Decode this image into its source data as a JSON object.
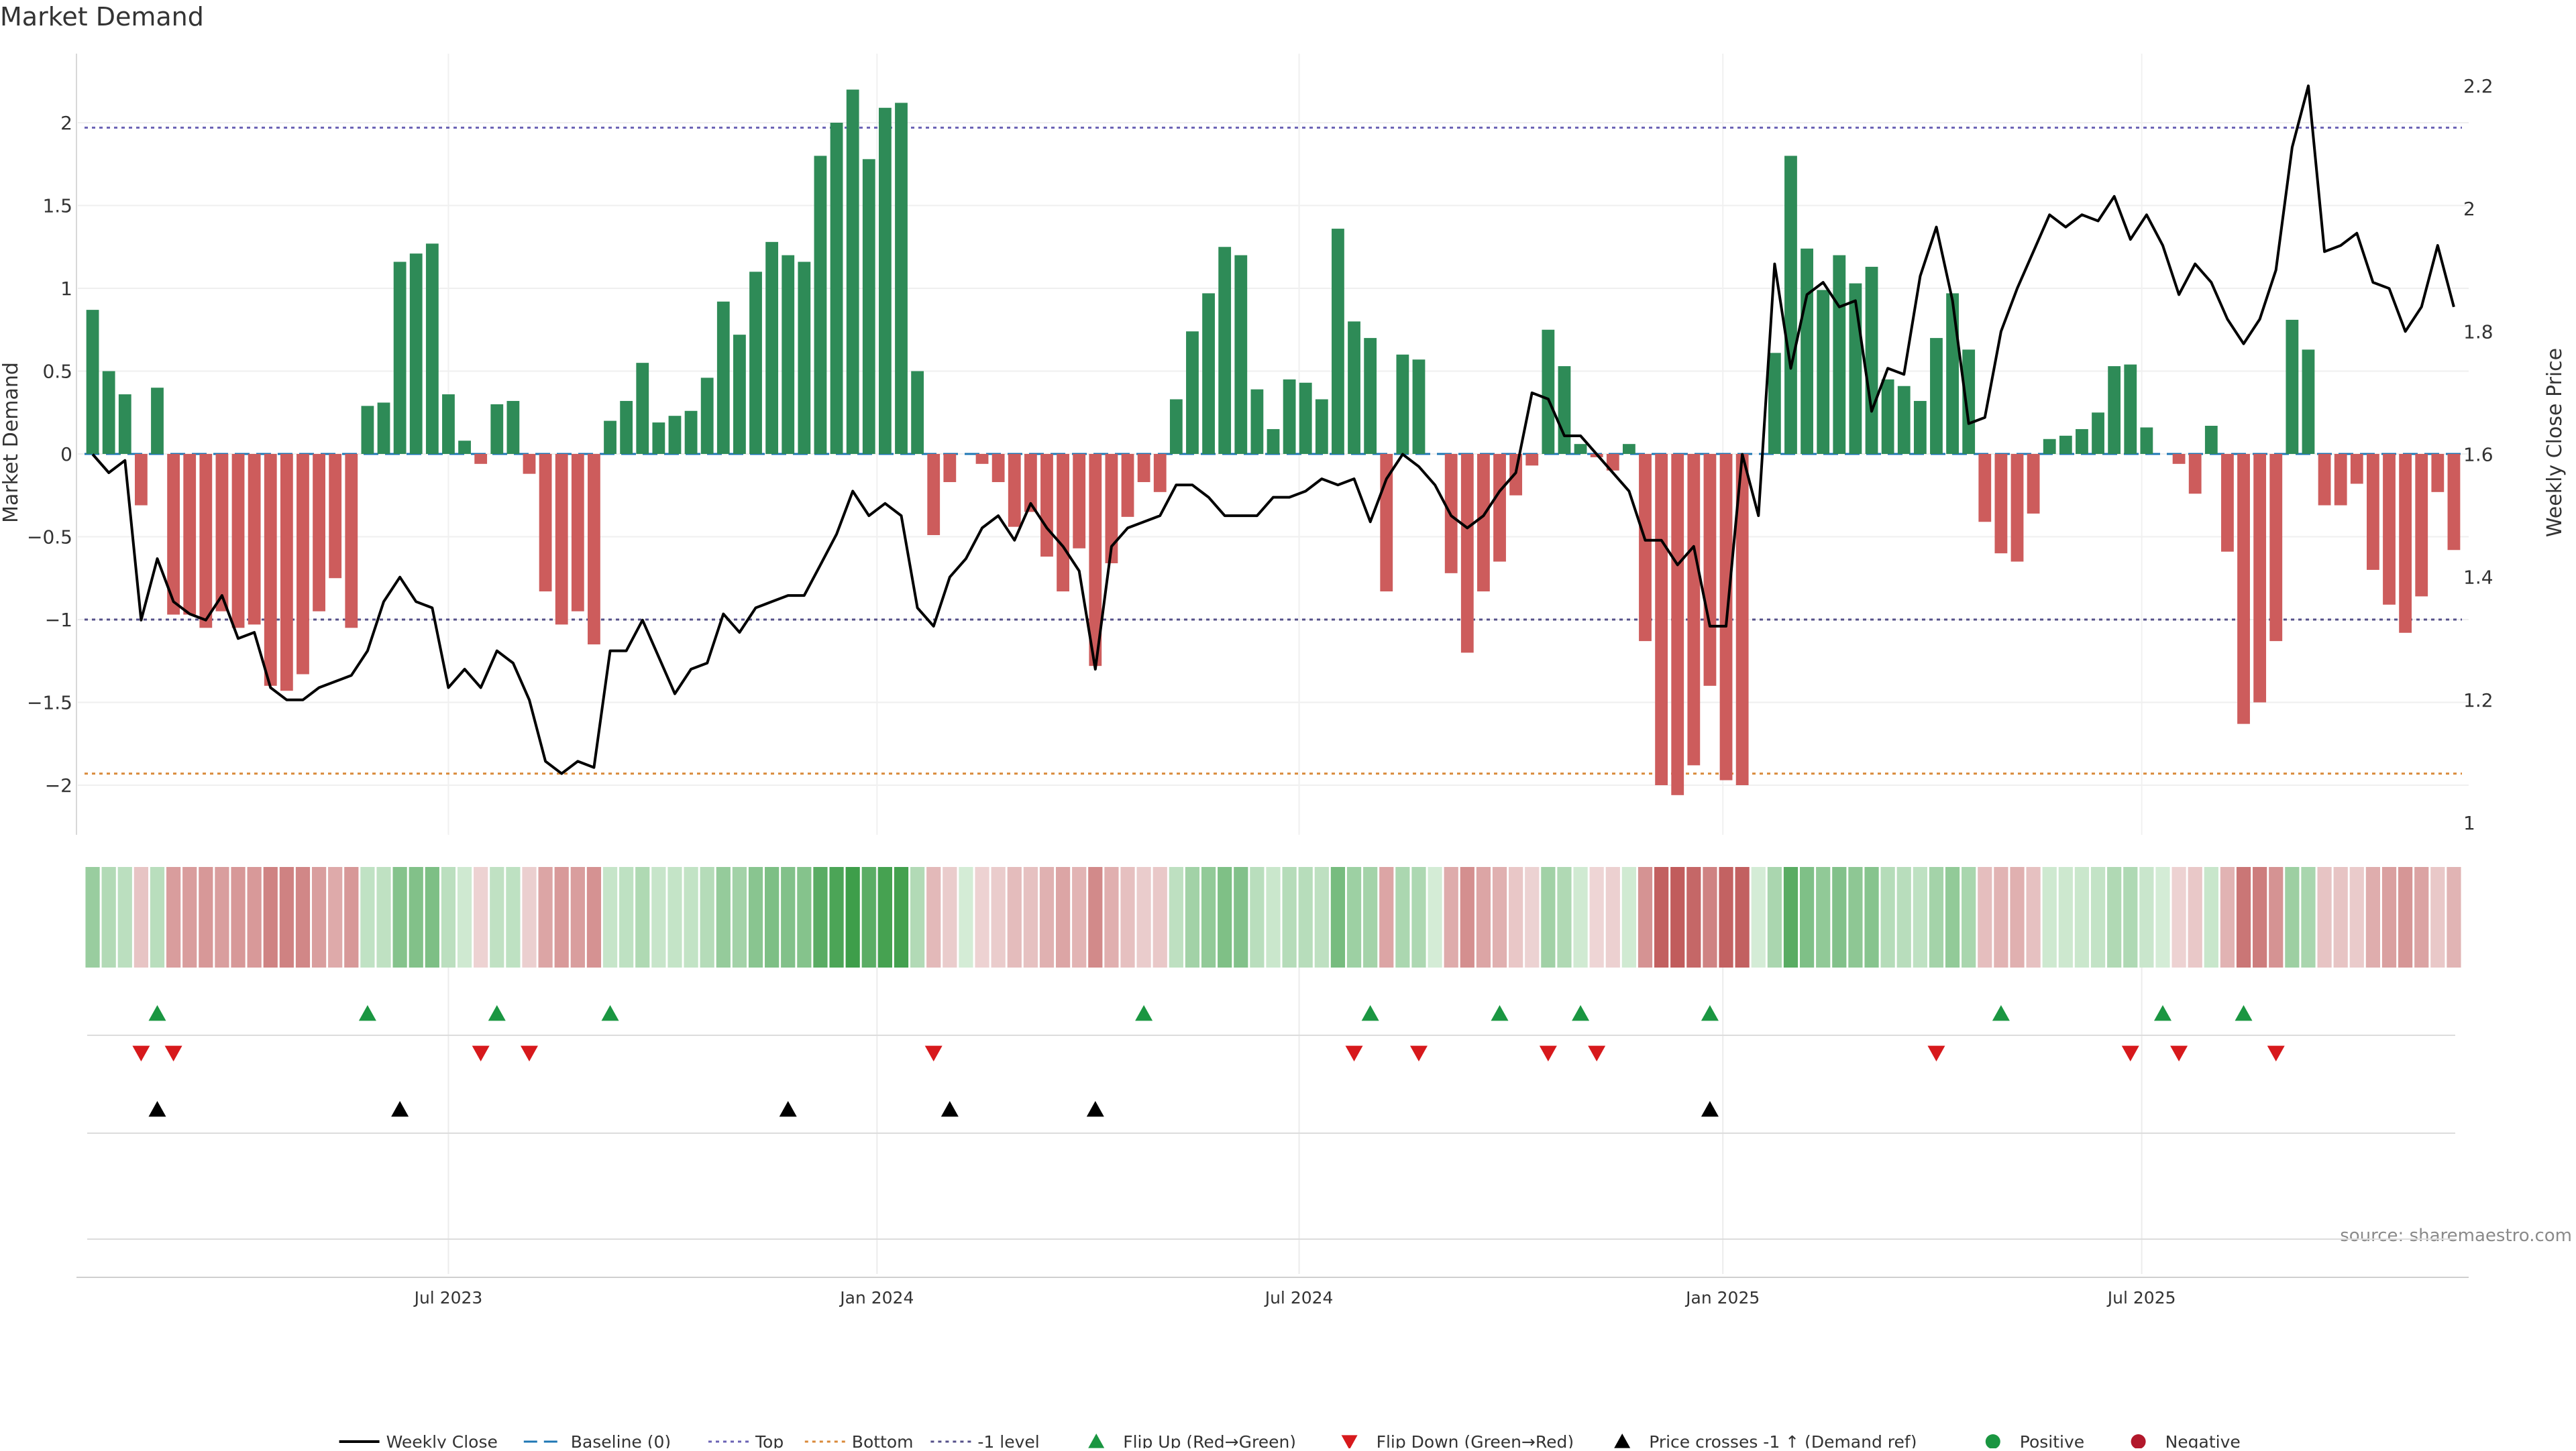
{
  "chart_data": {
    "type": "bar",
    "title": "Market Demand",
    "ylabel": "Market Demand",
    "y2label": "Weekly Close Price",
    "ylim": [
      -2.3,
      2.45
    ],
    "y2lim": [
      1.0,
      2.2
    ],
    "yticks": [
      2,
      1.5,
      1,
      0.5,
      0,
      -0.5,
      -1,
      -1.5,
      -2
    ],
    "ytick_labels": [
      "2",
      "1.5",
      "1",
      "0.5",
      "0",
      "−0.5",
      "−1",
      "−1.5",
      "−2"
    ],
    "y2ticks": [
      2.2,
      2.0,
      1.8,
      1.6,
      1.4,
      1.2,
      1.0
    ],
    "y2tick_labels": [
      "2.2",
      "2",
      "1.8",
      "1.6",
      "1.4",
      "1.2",
      "1"
    ],
    "x_labels": [
      {
        "label": "Jul 2023",
        "week": 22
      },
      {
        "label": "Jan 2024",
        "week": 48.5
      },
      {
        "label": "Jul 2024",
        "week": 74.6
      },
      {
        "label": "Jan 2025",
        "week": 100.8
      },
      {
        "label": "Jul 2025",
        "week": 126.7
      }
    ],
    "reference_lines": [
      {
        "name": "Top",
        "value": 1.97,
        "color": "#6b63b5",
        "dash": "dotted"
      },
      {
        "name": "-1 level",
        "value": -1.0,
        "color": "#55508a",
        "dash": "dotted"
      },
      {
        "name": "Bottom",
        "value": -1.93,
        "color": "#d98a3a",
        "dash": "dotted"
      },
      {
        "name": "Baseline (0)",
        "value": 0,
        "color": "#1f77b4",
        "dash": "dashed"
      }
    ],
    "colors": {
      "positive": "#2e8b57",
      "negative": "#cd5c5c",
      "price_line": "#000000",
      "flip_up": "#1a9641",
      "flip_down": "#d7191c",
      "cross": "#000000",
      "reference": "#1f77b4"
    },
    "series": [
      {
        "name": "Market Demand",
        "values": [
          0.87,
          0.5,
          0.36,
          -0.31,
          0.4,
          -0.97,
          -0.97,
          -1.05,
          -0.95,
          -1.05,
          -1.03,
          -1.4,
          -1.43,
          -1.33,
          -0.95,
          -0.75,
          -1.05,
          0.29,
          0.31,
          1.16,
          1.21,
          1.27,
          0.36,
          0.08,
          -0.06,
          0.3,
          0.32,
          -0.12,
          -0.83,
          -1.03,
          -0.95,
          -1.15,
          0.2,
          0.32,
          0.55,
          0.19,
          0.23,
          0.26,
          0.46,
          0.92,
          0.72,
          1.1,
          1.28,
          1.2,
          1.16,
          1.8,
          2.0,
          2.2,
          1.78,
          2.09,
          2.12,
          0.5,
          -0.49,
          -0.17,
          0.0,
          -0.06,
          -0.17,
          -0.44,
          -0.35,
          -0.62,
          -0.83,
          -0.57,
          -1.28,
          -0.66,
          -0.38,
          -0.17,
          -0.23,
          0.33,
          0.74,
          0.97,
          1.25,
          1.2,
          0.39,
          0.15,
          0.45,
          0.43,
          0.33,
          1.36,
          0.8,
          0.7,
          -0.83,
          0.6,
          0.57,
          0.0,
          -0.72,
          -1.2,
          -0.83,
          -0.65,
          -0.25,
          -0.07,
          0.75,
          0.53,
          0.06,
          -0.02,
          -0.1,
          0.06,
          -1.13,
          -2.0,
          -2.06,
          -1.88,
          -1.4,
          -1.97,
          -2.0,
          0.0,
          0.61,
          1.8,
          1.24,
          0.99,
          1.2,
          1.03,
          1.13,
          0.45,
          0.41,
          0.32,
          0.7,
          0.97,
          0.63,
          -0.41,
          -0.6,
          -0.65,
          -0.36,
          0.09,
          0.11,
          0.15,
          0.25,
          0.53,
          0.54,
          0.16,
          0.0,
          -0.06,
          -0.24,
          0.17,
          -0.59,
          -1.63,
          -1.5,
          -1.13,
          0.81,
          0.63,
          -0.31,
          -0.31,
          -0.18,
          -0.7,
          -0.91,
          -1.08,
          -0.86,
          -0.23,
          -0.58
        ]
      },
      {
        "name": "Weekly Close",
        "values": [
          1.6,
          1.57,
          1.59,
          1.33,
          1.43,
          1.36,
          1.34,
          1.33,
          1.37,
          1.3,
          1.31,
          1.22,
          1.2,
          1.2,
          1.22,
          1.23,
          1.24,
          1.28,
          1.36,
          1.4,
          1.36,
          1.35,
          1.22,
          1.25,
          1.22,
          1.28,
          1.26,
          1.2,
          1.1,
          1.08,
          1.1,
          1.09,
          1.28,
          1.28,
          1.33,
          1.27,
          1.21,
          1.25,
          1.26,
          1.34,
          1.31,
          1.35,
          1.36,
          1.37,
          1.37,
          1.42,
          1.47,
          1.54,
          1.5,
          1.52,
          1.5,
          1.35,
          1.32,
          1.4,
          1.43,
          1.48,
          1.5,
          1.46,
          1.52,
          1.48,
          1.45,
          1.41,
          1.25,
          1.45,
          1.48,
          1.49,
          1.5,
          1.55,
          1.55,
          1.53,
          1.5,
          1.5,
          1.5,
          1.53,
          1.53,
          1.54,
          1.56,
          1.55,
          1.56,
          1.49,
          1.56,
          1.6,
          1.58,
          1.55,
          1.5,
          1.48,
          1.5,
          1.54,
          1.57,
          1.7,
          1.69,
          1.63,
          1.63,
          1.6,
          1.57,
          1.54,
          1.46,
          1.46,
          1.42,
          1.45,
          1.32,
          1.32,
          1.6,
          1.5,
          1.91,
          1.74,
          1.86,
          1.88,
          1.84,
          1.85,
          1.67,
          1.74,
          1.73,
          1.89,
          1.97,
          1.85,
          1.65,
          1.66,
          1.8,
          1.87,
          1.93,
          1.99,
          1.97,
          1.99,
          1.98,
          2.02,
          1.95,
          1.99,
          1.94,
          1.86,
          1.91,
          1.88,
          1.82,
          1.78,
          1.82,
          1.9,
          2.1,
          2.2,
          1.93,
          1.94,
          1.96,
          1.88,
          1.87,
          1.8,
          1.84,
          1.94,
          1.84
        ]
      }
    ],
    "heatmap_strip": {
      "description": "demand intensity per week"
    },
    "flip_up_weeks": [
      4,
      17,
      25,
      32,
      65,
      79,
      87,
      92,
      100,
      118,
      128,
      133
    ],
    "flip_down_weeks": [
      3,
      5,
      24,
      27,
      52,
      78,
      82,
      90,
      93,
      114,
      126,
      129,
      135
    ],
    "price_cross_weeks": [
      4,
      19,
      43,
      53,
      62,
      100
    ]
  },
  "watermark": "source: sharemaestro.com",
  "legend": [
    {
      "label": "Weekly Close",
      "kind": "line",
      "color": "#000000"
    },
    {
      "label": "Baseline (0)",
      "kind": "dashed",
      "color": "#1f77b4"
    },
    {
      "label": "Top",
      "kind": "dotted",
      "color": "#6b63b5"
    },
    {
      "label": "Bottom",
      "kind": "dotted",
      "color": "#d98a3a"
    },
    {
      "label": "-1 level",
      "kind": "dotted",
      "color": "#55508a"
    },
    {
      "label": "Flip Up (Red→Green)",
      "kind": "tri-up",
      "color": "#1a9641"
    },
    {
      "label": "Flip Down (Green→Red)",
      "kind": "tri-down",
      "color": "#d7191c"
    },
    {
      "label": "Price crosses -1 ↑ (Demand ref)",
      "kind": "tri-up",
      "color": "#000000"
    },
    {
      "label": "Positive",
      "kind": "dot",
      "color": "#1a9641"
    },
    {
      "label": "Negative",
      "kind": "dot",
      "color": "#b2182b"
    }
  ]
}
